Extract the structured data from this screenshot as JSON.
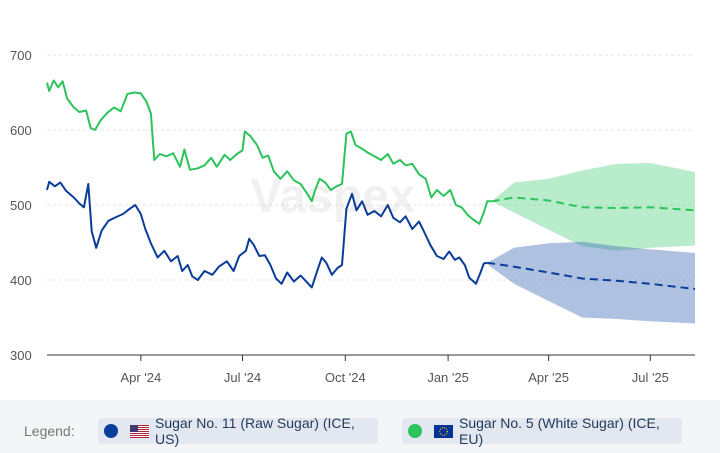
{
  "chart_data": {
    "type": "line",
    "x_ticks": [
      "Apr '24",
      "Jul '24",
      "Oct '24",
      "Jan '25",
      "Apr '25",
      "Jul '25"
    ],
    "y_ticks": [
      300,
      400,
      500,
      600,
      700
    ],
    "ylim": [
      300,
      720
    ],
    "xlim": [
      "2024-01-08",
      "2025-08-10"
    ],
    "grid": true,
    "watermark": "Vaspex",
    "series": [
      {
        "name": "Sugar No. 11 (Raw Sugar) (ICE, US)",
        "color": "#0a3d99",
        "flag": "us-flag-icon",
        "historical": [
          [
            "2024-01-08",
            520
          ],
          [
            "2024-01-10",
            531
          ],
          [
            "2024-01-15",
            525
          ],
          [
            "2024-01-20",
            530
          ],
          [
            "2024-01-25",
            519
          ],
          [
            "2024-02-01",
            510
          ],
          [
            "2024-02-06",
            502
          ],
          [
            "2024-02-10",
            497
          ],
          [
            "2024-02-14",
            528
          ],
          [
            "2024-02-17",
            465
          ],
          [
            "2024-02-21",
            443
          ],
          [
            "2024-02-26",
            466
          ],
          [
            "2024-03-03",
            479
          ],
          [
            "2024-03-10",
            484
          ],
          [
            "2024-03-16",
            488
          ],
          [
            "2024-03-22",
            495
          ],
          [
            "2024-03-27",
            500
          ],
          [
            "2024-04-01",
            488
          ],
          [
            "2024-04-05",
            468
          ],
          [
            "2024-04-10",
            449
          ],
          [
            "2024-04-16",
            430
          ],
          [
            "2024-04-22",
            439
          ],
          [
            "2024-04-28",
            425
          ],
          [
            "2024-05-04",
            432
          ],
          [
            "2024-05-08",
            412
          ],
          [
            "2024-05-13",
            420
          ],
          [
            "2024-05-17",
            405
          ],
          [
            "2024-05-22",
            400
          ],
          [
            "2024-05-28",
            412
          ],
          [
            "2024-06-04",
            407
          ],
          [
            "2024-06-10",
            418
          ],
          [
            "2024-06-17",
            425
          ],
          [
            "2024-06-23",
            412
          ],
          [
            "2024-06-28",
            432
          ],
          [
            "2024-07-04",
            439
          ],
          [
            "2024-07-07",
            455
          ],
          [
            "2024-07-11",
            447
          ],
          [
            "2024-07-16",
            432
          ],
          [
            "2024-07-21",
            433
          ],
          [
            "2024-07-26",
            420
          ],
          [
            "2024-07-31",
            402
          ],
          [
            "2024-08-05",
            395
          ],
          [
            "2024-08-10",
            410
          ],
          [
            "2024-08-16",
            398
          ],
          [
            "2024-08-22",
            406
          ],
          [
            "2024-08-29",
            395
          ],
          [
            "2024-09-01",
            390
          ],
          [
            "2024-09-06",
            413
          ],
          [
            "2024-09-10",
            430
          ],
          [
            "2024-09-14",
            423
          ],
          [
            "2024-09-19",
            407
          ],
          [
            "2024-09-24",
            416
          ],
          [
            "2024-09-28",
            420
          ],
          [
            "2024-10-02",
            495
          ],
          [
            "2024-10-07",
            515
          ],
          [
            "2024-10-11",
            493
          ],
          [
            "2024-10-16",
            505
          ],
          [
            "2024-10-21",
            487
          ],
          [
            "2024-10-27",
            492
          ],
          [
            "2024-11-02",
            485
          ],
          [
            "2024-11-08",
            500
          ],
          [
            "2024-11-13",
            483
          ],
          [
            "2024-11-19",
            477
          ],
          [
            "2024-11-24",
            485
          ],
          [
            "2024-11-30",
            468
          ],
          [
            "2024-12-06",
            478
          ],
          [
            "2024-12-10",
            466
          ],
          [
            "2024-12-16",
            447
          ],
          [
            "2024-12-22",
            432
          ],
          [
            "2024-12-28",
            428
          ],
          [
            "2025-01-02",
            438
          ],
          [
            "2025-01-07",
            427
          ],
          [
            "2025-01-11",
            430
          ],
          [
            "2025-01-16",
            420
          ],
          [
            "2025-01-20",
            403
          ],
          [
            "2025-01-26",
            395
          ],
          [
            "2025-01-30",
            410
          ],
          [
            "2025-02-02",
            422
          ],
          [
            "2025-02-05",
            423
          ]
        ],
        "forecast": [
          [
            "2025-02-05",
            423
          ],
          [
            "2025-02-28",
            418
          ],
          [
            "2025-04-01",
            410
          ],
          [
            "2025-05-01",
            402
          ],
          [
            "2025-06-01",
            399
          ],
          [
            "2025-07-01",
            395
          ],
          [
            "2025-08-10",
            388
          ]
        ],
        "band": {
          "upper": [
            [
              "2025-02-05",
              423
            ],
            [
              "2025-03-01",
              443
            ],
            [
              "2025-04-01",
              449
            ],
            [
              "2025-05-01",
              451
            ],
            [
              "2025-06-01",
              445
            ],
            [
              "2025-07-01",
              441
            ],
            [
              "2025-08-10",
              436
            ]
          ],
          "lower": [
            [
              "2025-02-05",
              421
            ],
            [
              "2025-03-01",
              395
            ],
            [
              "2025-04-01",
              372
            ],
            [
              "2025-05-01",
              350
            ],
            [
              "2025-06-01",
              348
            ],
            [
              "2025-07-01",
              345
            ],
            [
              "2025-08-10",
              342
            ]
          ]
        }
      },
      {
        "name": "Sugar No. 5 (White Sugar) (ICE, EU)",
        "color": "#2cc35c",
        "flag": "eu-flag-icon",
        "historical": [
          [
            "2024-01-08",
            663
          ],
          [
            "2024-01-10",
            652
          ],
          [
            "2024-01-14",
            666
          ],
          [
            "2024-01-18",
            657
          ],
          [
            "2024-01-22",
            665
          ],
          [
            "2024-01-26",
            642
          ],
          [
            "2024-02-01",
            630
          ],
          [
            "2024-02-06",
            624
          ],
          [
            "2024-02-12",
            626
          ],
          [
            "2024-02-16",
            603
          ],
          [
            "2024-02-20",
            600
          ],
          [
            "2024-02-25",
            613
          ],
          [
            "2024-03-02",
            623
          ],
          [
            "2024-03-08",
            630
          ],
          [
            "2024-03-14",
            625
          ],
          [
            "2024-03-20",
            648
          ],
          [
            "2024-03-26",
            650
          ],
          [
            "2024-04-01",
            649
          ],
          [
            "2024-04-06",
            638
          ],
          [
            "2024-04-10",
            622
          ],
          [
            "2024-04-13",
            560
          ],
          [
            "2024-04-18",
            568
          ],
          [
            "2024-04-24",
            565
          ],
          [
            "2024-04-30",
            569
          ],
          [
            "2024-05-06",
            551
          ],
          [
            "2024-05-10",
            574
          ],
          [
            "2024-05-15",
            547
          ],
          [
            "2024-05-22",
            549
          ],
          [
            "2024-05-28",
            553
          ],
          [
            "2024-06-03",
            563
          ],
          [
            "2024-06-08",
            551
          ],
          [
            "2024-06-15",
            567
          ],
          [
            "2024-06-20",
            560
          ],
          [
            "2024-06-26",
            568
          ],
          [
            "2024-07-01",
            573
          ],
          [
            "2024-07-03",
            598
          ],
          [
            "2024-07-08",
            592
          ],
          [
            "2024-07-14",
            580
          ],
          [
            "2024-07-19",
            563
          ],
          [
            "2024-07-24",
            566
          ],
          [
            "2024-07-29",
            545
          ],
          [
            "2024-08-04",
            535
          ],
          [
            "2024-08-10",
            545
          ],
          [
            "2024-08-16",
            533
          ],
          [
            "2024-08-22",
            528
          ],
          [
            "2024-08-28",
            515
          ],
          [
            "2024-09-01",
            505
          ],
          [
            "2024-09-04",
            520
          ],
          [
            "2024-09-08",
            535
          ],
          [
            "2024-09-13",
            530
          ],
          [
            "2024-09-18",
            520
          ],
          [
            "2024-09-23",
            525
          ],
          [
            "2024-09-28",
            528
          ],
          [
            "2024-10-02",
            595
          ],
          [
            "2024-10-06",
            598
          ],
          [
            "2024-10-10",
            580
          ],
          [
            "2024-10-16",
            575
          ],
          [
            "2024-10-21",
            570
          ],
          [
            "2024-10-27",
            565
          ],
          [
            "2024-11-02",
            560
          ],
          [
            "2024-11-08",
            568
          ],
          [
            "2024-11-13",
            555
          ],
          [
            "2024-11-19",
            560
          ],
          [
            "2024-11-24",
            553
          ],
          [
            "2024-11-30",
            555
          ],
          [
            "2024-12-06",
            541
          ],
          [
            "2024-12-12",
            535
          ],
          [
            "2024-12-17",
            510
          ],
          [
            "2024-12-22",
            520
          ],
          [
            "2024-12-28",
            512
          ],
          [
            "2025-01-03",
            520
          ],
          [
            "2025-01-08",
            500
          ],
          [
            "2025-01-13",
            497
          ],
          [
            "2025-01-19",
            486
          ],
          [
            "2025-01-24",
            480
          ],
          [
            "2025-01-29",
            475
          ],
          [
            "2025-02-02",
            490
          ],
          [
            "2025-02-05",
            505
          ],
          [
            "2025-02-09",
            505
          ]
        ],
        "forecast": [
          [
            "2025-02-09",
            505
          ],
          [
            "2025-03-01",
            510
          ],
          [
            "2025-04-01",
            506
          ],
          [
            "2025-05-01",
            497
          ],
          [
            "2025-06-01",
            496
          ],
          [
            "2025-07-01",
            497
          ],
          [
            "2025-08-10",
            493
          ]
        ],
        "band": {
          "upper": [
            [
              "2025-02-09",
              505
            ],
            [
              "2025-03-01",
              530
            ],
            [
              "2025-04-01",
              535
            ],
            [
              "2025-05-01",
              546
            ],
            [
              "2025-06-01",
              555
            ],
            [
              "2025-07-01",
              556
            ],
            [
              "2025-08-10",
              544
            ]
          ],
          "lower": [
            [
              "2025-02-09",
              505
            ],
            [
              "2025-03-01",
              490
            ],
            [
              "2025-04-01",
              467
            ],
            [
              "2025-05-01",
              445
            ],
            [
              "2025-06-01",
              439
            ],
            [
              "2025-07-01",
              443
            ],
            [
              "2025-08-10",
              446
            ]
          ]
        }
      }
    ]
  },
  "legend": {
    "title": "Legend:",
    "items": [
      {
        "label": "Sugar No. 11 (Raw Sugar) (ICE, US)",
        "color": "#0a3d99",
        "flag": "us-flag-icon"
      },
      {
        "label": "Sugar No. 5 (White Sugar) (ICE, EU)",
        "color": "#2cc35c",
        "flag": "eu-flag-icon"
      }
    ]
  }
}
